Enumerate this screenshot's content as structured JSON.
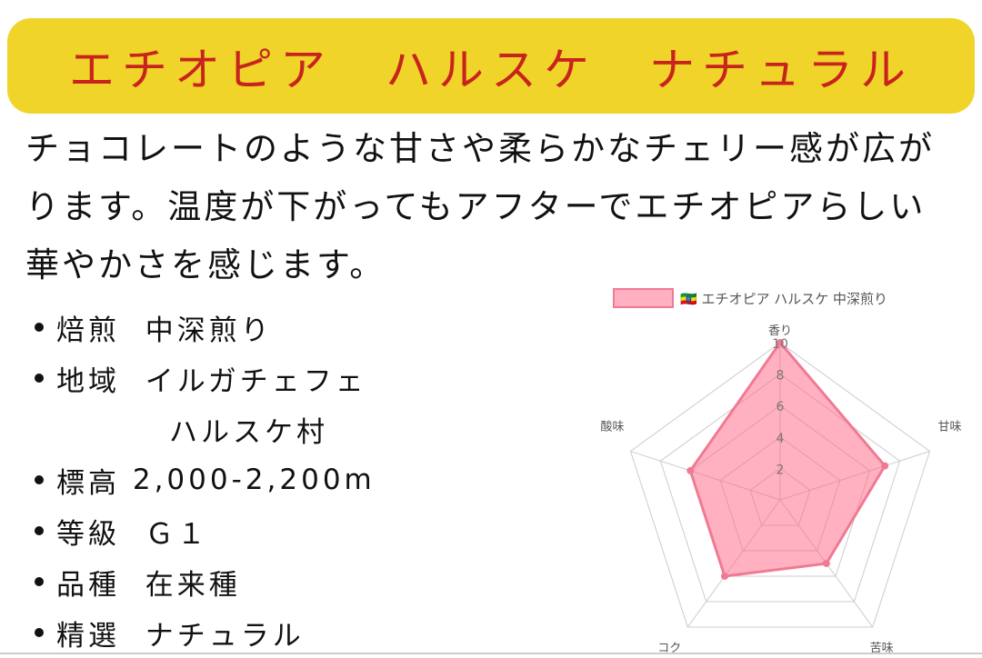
{
  "title": "エチオピア　ハルスケ　ナチュラル",
  "description": [
    "チョコレートのような甘さや柔らかなチェリー感が広が",
    "ります。温度が下がってもアフターでエチオピアらしい",
    "華やかさを感じます。"
  ],
  "specs": [
    {
      "label": "焙煎",
      "value": "中深煎り"
    },
    {
      "label": "地域",
      "value": "イルガチェフェ"
    },
    {
      "label": "",
      "value": "ハルスケ村"
    },
    {
      "label": "標高",
      "value": "2,000-2,200m"
    },
    {
      "label": "等級",
      "value": "Ｇ１"
    },
    {
      "label": "品種",
      "value": "在来種"
    },
    {
      "label": "精選",
      "value": "ナチュラル"
    }
  ],
  "colors": {
    "banner": "#f0d42a",
    "title": "#c8241e",
    "series_fill": "rgba(255,99,132,0.5)",
    "series_line": "#f07a94"
  },
  "chart_data": {
    "type": "radar",
    "categories": [
      "香り",
      "甘味",
      "苦味",
      "コク",
      "酸味"
    ],
    "series": [
      {
        "name": "🇪🇹 エチオピア ハルスケ 中深煎り",
        "values": [
          10,
          7,
          5,
          6,
          6
        ]
      }
    ],
    "rlim": [
      0,
      10
    ],
    "ticks": [
      "2",
      "4",
      "6",
      "8",
      "10"
    ],
    "legend": "top",
    "grid": true
  }
}
